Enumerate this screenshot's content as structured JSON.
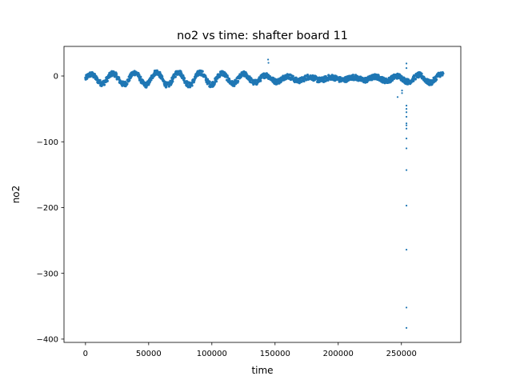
{
  "chart_data": {
    "type": "scatter",
    "title": "no2 vs time: shafter board 11",
    "xlabel": "time",
    "ylabel": "no2",
    "xlim": [
      -17000,
      297000
    ],
    "ylim": [
      -405,
      45
    ],
    "xticks": [
      0,
      50000,
      100000,
      150000,
      200000,
      250000
    ],
    "xtick_labels": [
      "0",
      "50000",
      "100000",
      "150000",
      "200000",
      "250000"
    ],
    "yticks": [
      0,
      -100,
      -200,
      -300,
      -400
    ],
    "ytick_labels": [
      "0",
      "−100",
      "−200",
      "−300",
      "−400"
    ],
    "grid": false,
    "legend": "none",
    "marker_color": "#1f77b4",
    "series": [
      {
        "x_range": [
          0,
          283000
        ],
        "baseline": -4,
        "daily_cycle_period": 17300,
        "daily_amplitude": 10,
        "noise": 4,
        "outliers": [
          {
            "x": 144500,
            "y": 25
          },
          {
            "x": 144800,
            "y": 20
          },
          {
            "x": 247000,
            "y": -32
          },
          {
            "x": 250500,
            "y": -26
          },
          {
            "x": 250500,
            "y": -22
          },
          {
            "x": 254000,
            "y": 19
          },
          {
            "x": 254000,
            "y": 12
          },
          {
            "x": 254000,
            "y": -45
          },
          {
            "x": 254000,
            "y": -50
          },
          {
            "x": 254000,
            "y": -55
          },
          {
            "x": 254000,
            "y": -62
          },
          {
            "x": 254000,
            "y": -72
          },
          {
            "x": 254000,
            "y": -75
          },
          {
            "x": 254000,
            "y": -80
          },
          {
            "x": 254000,
            "y": -95
          },
          {
            "x": 254000,
            "y": -110
          },
          {
            "x": 254000,
            "y": -143
          },
          {
            "x": 254000,
            "y": -197
          },
          {
            "x": 254000,
            "y": -264
          },
          {
            "x": 254000,
            "y": -352
          },
          {
            "x": 254000,
            "y": -383
          }
        ]
      }
    ]
  }
}
